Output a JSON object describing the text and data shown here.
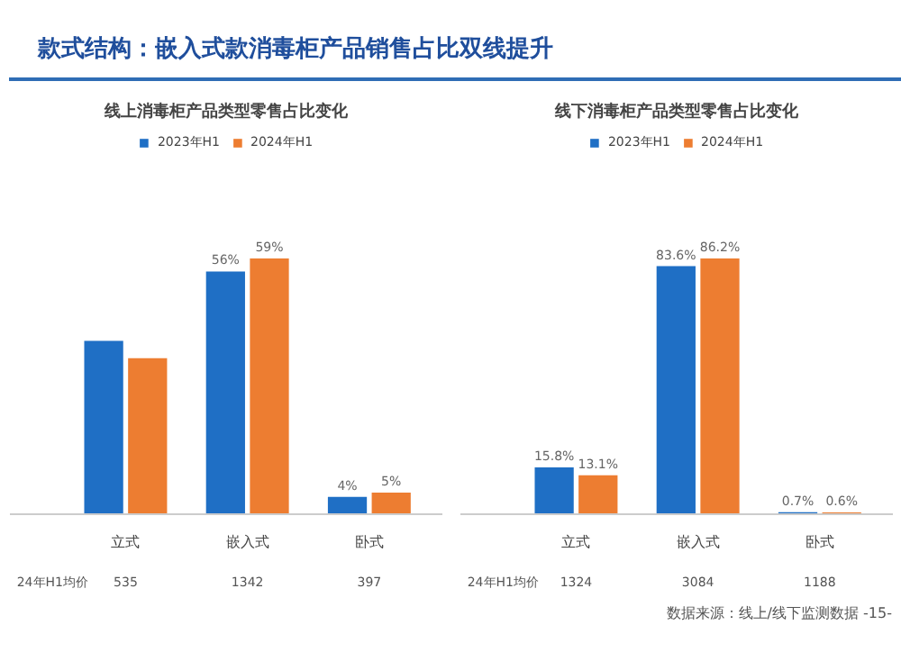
{
  "chart_data": [
    {
      "type": "bar",
      "title": "线上消毒柜产品类型零售占比变化",
      "categories": [
        "立式",
        "嵌入式",
        "卧式"
      ],
      "legend": "top",
      "series": [
        {
          "name": "2023年H1",
          "color": "#1f6fc5",
          "values": [
            40,
            56,
            4
          ],
          "value_labels": [
            null,
            "56%",
            "4%"
          ]
        },
        {
          "name": "2024年H1",
          "color": "#ed7d31",
          "values": [
            36,
            59,
            5
          ],
          "value_labels": [
            null,
            "59%",
            "5%"
          ]
        }
      ],
      "annotations": [
        "24年H1均价",
        "535",
        "1342",
        "397",
        "款式结构：嵌入式款消毒柜产品销售占比双线提升"
      ]
    },
    {
      "type": "bar",
      "title": "线下消毒柜产品类型零售占比变化",
      "categories": [
        "立式",
        "嵌入式",
        "卧式"
      ],
      "legend": "top",
      "series": [
        {
          "name": "2023年H1",
          "color": "#1f6fc5",
          "values": [
            15.8,
            83.6,
            0.7
          ],
          "value_labels": [
            "15.8%",
            "83.6%",
            "0.7%"
          ]
        },
        {
          "name": "2024年H1",
          "color": "#ed7d31",
          "values": [
            13.1,
            86.2,
            0.6
          ],
          "value_labels": [
            "13.1%",
            "86.2%",
            "0.6%"
          ]
        }
      ],
      "annotations": [
        "24年H1均价",
        "1324",
        "3084",
        "1188",
        "数据来源：线上/线下监测数据 -15-"
      ]
    }
  ]
}
